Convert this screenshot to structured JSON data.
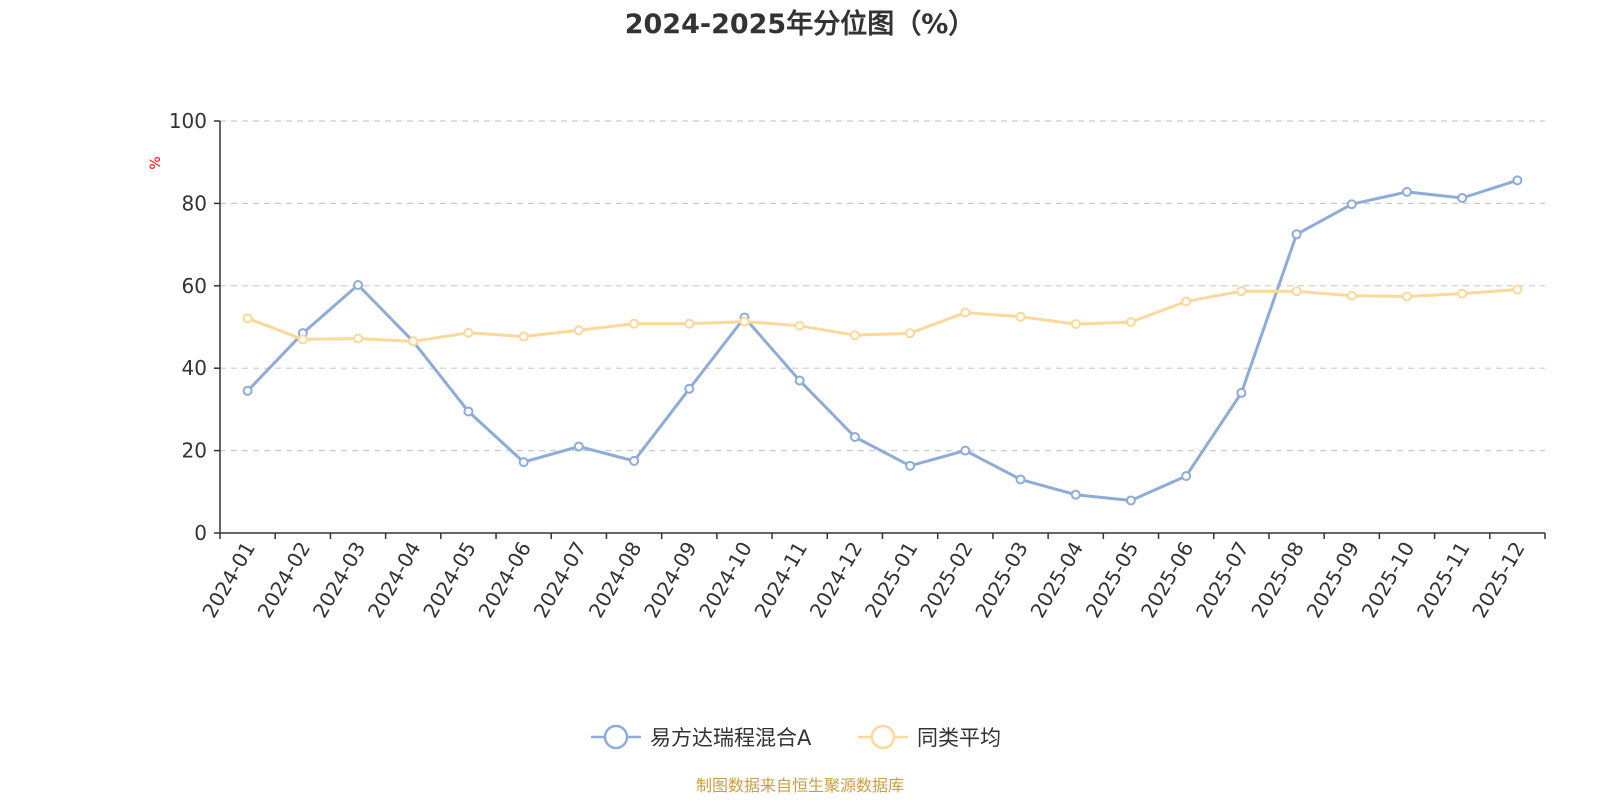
{
  "chart_data": {
    "type": "line",
    "title": "2024-2025年分位图（%）",
    "ylabel": "%",
    "xlabel": "",
    "ylim": [
      0,
      100
    ],
    "yticks": [
      0,
      20,
      40,
      60,
      80,
      100
    ],
    "grid": true,
    "legend_position": "bottom-center",
    "categories": [
      "2024-01",
      "2024-02",
      "2024-03",
      "2024-04",
      "2024-05",
      "2024-06",
      "2024-07",
      "2024-08",
      "2024-09",
      "2024-10",
      "2024-11",
      "2024-12",
      "2025-01",
      "2025-02",
      "2025-03",
      "2025-04",
      "2025-05",
      "2025-06",
      "2025-07",
      "2025-08",
      "2025-09",
      "2025-10",
      "2025-11",
      "2025-12"
    ],
    "series": [
      {
        "name": "易方达瑞程混合A",
        "color": "#8eacd8",
        "values": [
          34.5,
          48.5,
          60.2,
          46.5,
          29.5,
          17.2,
          21.0,
          17.5,
          35.0,
          52.3,
          37.0,
          23.3,
          16.3,
          20.0,
          13.0,
          9.3,
          7.9,
          13.8,
          34.0,
          72.5,
          79.8,
          82.8,
          81.3,
          85.6
        ]
      },
      {
        "name": "同类平均",
        "color": "#fcd89a",
        "values": [
          52.1,
          47.0,
          47.2,
          46.5,
          48.6,
          47.7,
          49.2,
          50.8,
          50.8,
          51.3,
          50.3,
          48.0,
          48.5,
          53.5,
          52.5,
          50.7,
          51.2,
          56.2,
          58.7,
          58.7,
          57.6,
          57.4,
          58.1,
          59.1
        ]
      }
    ],
    "source": "制图数据来自恒生聚源数据库",
    "source_color": "#c8a042",
    "unit_color": "#ff0000"
  }
}
